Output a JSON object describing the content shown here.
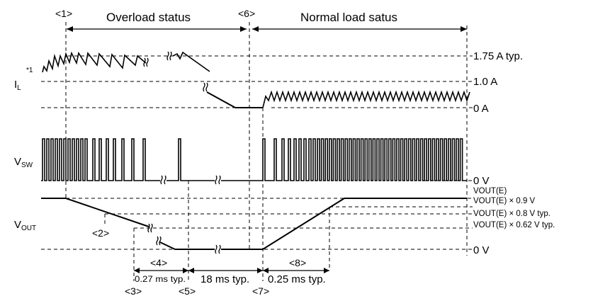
{
  "phases": {
    "overload": "Overload status",
    "normal": "Normal load satus"
  },
  "markers": {
    "m1": "<1>",
    "m2": "<2>",
    "m3": "<3>",
    "m4": "<4>",
    "m5": "<5>",
    "m6": "<6>",
    "m7": "<7>",
    "m8": "<8>"
  },
  "signals": {
    "il": {
      "main": "I",
      "sub": "L",
      "note": "*1"
    },
    "vsw": {
      "main": "V",
      "sub": "SW"
    },
    "vout": {
      "main": "V",
      "sub": "OUT"
    }
  },
  "levels": {
    "il_high": "1.75 A typ.",
    "il_mid": "1.0 A",
    "il_zero": "0 A",
    "vsw_zero": "0 V",
    "vout_e": "VOUT(E)",
    "vout_09": "VOUT(E) × 0.9 V",
    "vout_08": "VOUT(E) × 0.8 V typ.",
    "vout_062": "VOUT(E) × 0.62 V typ.",
    "vout_zero": "0 V"
  },
  "timings": {
    "t4": "0.27 ms typ.",
    "t5": "18 ms typ.",
    "t8": "0.25 ms typ."
  }
}
